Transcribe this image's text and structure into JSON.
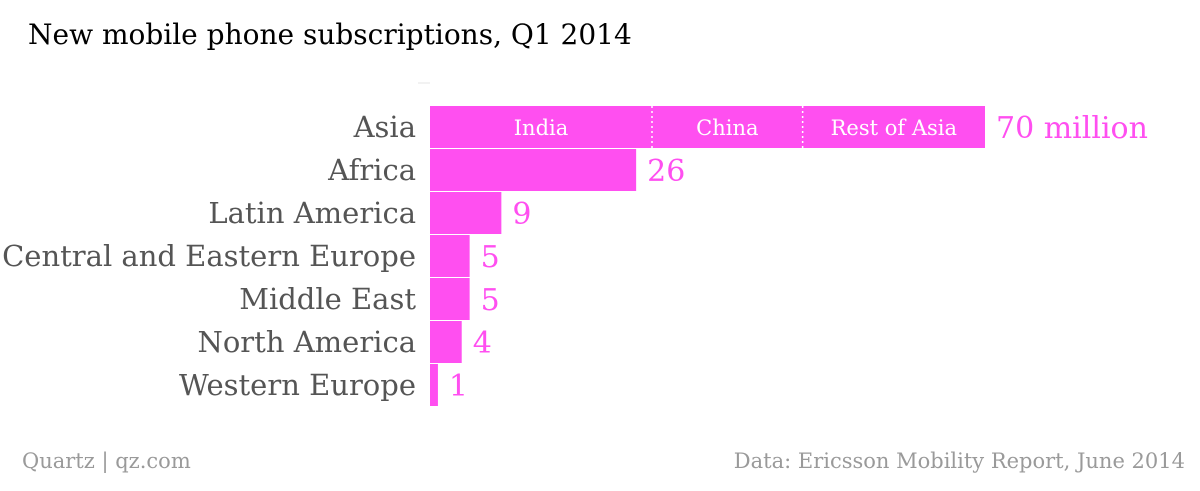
{
  "colors": {
    "bar": "#ff4ff0",
    "value_text": "#ff4ff0",
    "category_text": "#555555",
    "title_text": "#000000",
    "footer_text": "#9a9a9a"
  },
  "footer": {
    "source_left": "Quartz | qz.com",
    "source_right": "Data: Ericsson Mobility Report, June 2014"
  },
  "chart_data": {
    "type": "bar",
    "orientation": "horizontal",
    "title": "New mobile phone subscriptions, Q1 2014",
    "categories": [
      "Asia",
      "Africa",
      "Latin America",
      "Central and Eastern Europe",
      "Middle East",
      "North America",
      "Western Europe"
    ],
    "values": [
      70,
      26,
      9,
      5,
      5,
      4,
      1
    ],
    "value_labels": [
      "70 million",
      "26",
      "9",
      "5",
      "5",
      "4",
      "1"
    ],
    "unit": "million",
    "xlim": [
      0,
      70
    ],
    "grid": false,
    "asia_breakdown": {
      "category": "Asia",
      "segments": [
        {
          "label": "India",
          "value": 28
        },
        {
          "label": "China",
          "value": 19
        },
        {
          "label": "Rest of Asia",
          "value": 23
        }
      ]
    }
  }
}
